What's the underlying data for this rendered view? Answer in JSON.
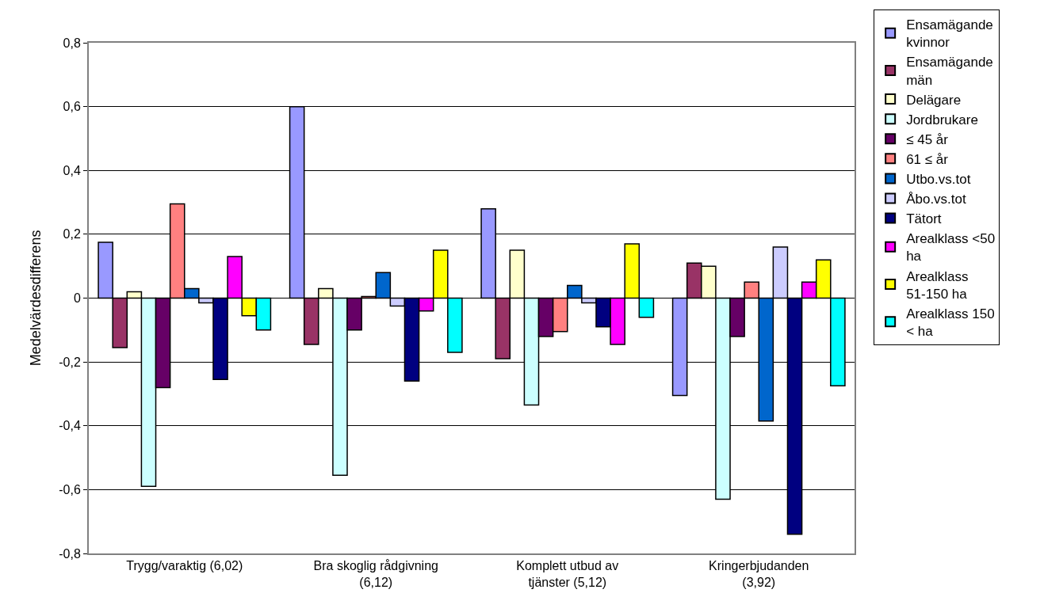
{
  "chart_data": {
    "type": "bar",
    "ylabel": "Medelvärdesdifferens",
    "categories": [
      "Trygg/varaktig (6,02)",
      "Bra skoglig rådgivning (6,12)",
      "Komplett utbud av tjänster (5,12)",
      "Kringerbjudanden (3,92)"
    ],
    "series": [
      {
        "name": "Ensamägande kvinnor",
        "color": "#9999ff",
        "values": [
          0.175,
          0.6,
          0.28,
          -0.305
        ]
      },
      {
        "name": "Ensamägande män",
        "color": "#993366",
        "values": [
          -0.155,
          -0.145,
          -0.19,
          0.11
        ]
      },
      {
        "name": "Delägare",
        "color": "#ffffcc",
        "values": [
          0.02,
          0.03,
          0.15,
          0.1
        ]
      },
      {
        "name": "Jordbrukare",
        "color": "#ccffff",
        "values": [
          -0.59,
          -0.555,
          -0.335,
          -0.63
        ]
      },
      {
        "name": "≤ 45 år",
        "color": "#660066",
        "values": [
          -0.28,
          -0.1,
          -0.12,
          -0.12
        ]
      },
      {
        "name": "61 ≤ år",
        "color": "#ff8080",
        "values": [
          0.295,
          0.005,
          -0.105,
          0.05
        ]
      },
      {
        "name": "Utbo.vs.tot",
        "color": "#0066cc",
        "values": [
          0.03,
          0.08,
          0.04,
          -0.385
        ]
      },
      {
        "name": "Åbo.vs.tot",
        "color": "#ccccff",
        "values": [
          -0.015,
          -0.025,
          -0.015,
          0.16
        ]
      },
      {
        "name": "Tätort",
        "color": "#000080",
        "values": [
          -0.255,
          -0.26,
          -0.09,
          -0.74
        ]
      },
      {
        "name": "Arealklass <50 ha",
        "color": "#ff00ff",
        "values": [
          0.13,
          -0.04,
          -0.145,
          0.05
        ]
      },
      {
        "name": "Arealklass 51-150 ha",
        "color": "#ffff00",
        "values": [
          -0.055,
          0.15,
          0.17,
          0.12
        ]
      },
      {
        "name": "Arealklass 150 < ha",
        "color": "#00ffff",
        "values": [
          -0.1,
          -0.17,
          -0.06,
          -0.275
        ]
      }
    ],
    "ylim": [
      -0.8,
      0.8
    ],
    "yticks": [
      {
        "value": -0.8,
        "label": "-0,8"
      },
      {
        "value": -0.6,
        "label": "-0,6"
      },
      {
        "value": -0.4,
        "label": "-0,4"
      },
      {
        "value": -0.2,
        "label": "-0,2"
      },
      0,
      {
        "value": 0.2,
        "label": "0,2"
      },
      {
        "value": 0.4,
        "label": "0,4"
      },
      {
        "value": 0.6,
        "label": "0,6"
      },
      {
        "value": 0.8,
        "label": "0,8"
      }
    ],
    "grid": "y",
    "legend": "right"
  }
}
